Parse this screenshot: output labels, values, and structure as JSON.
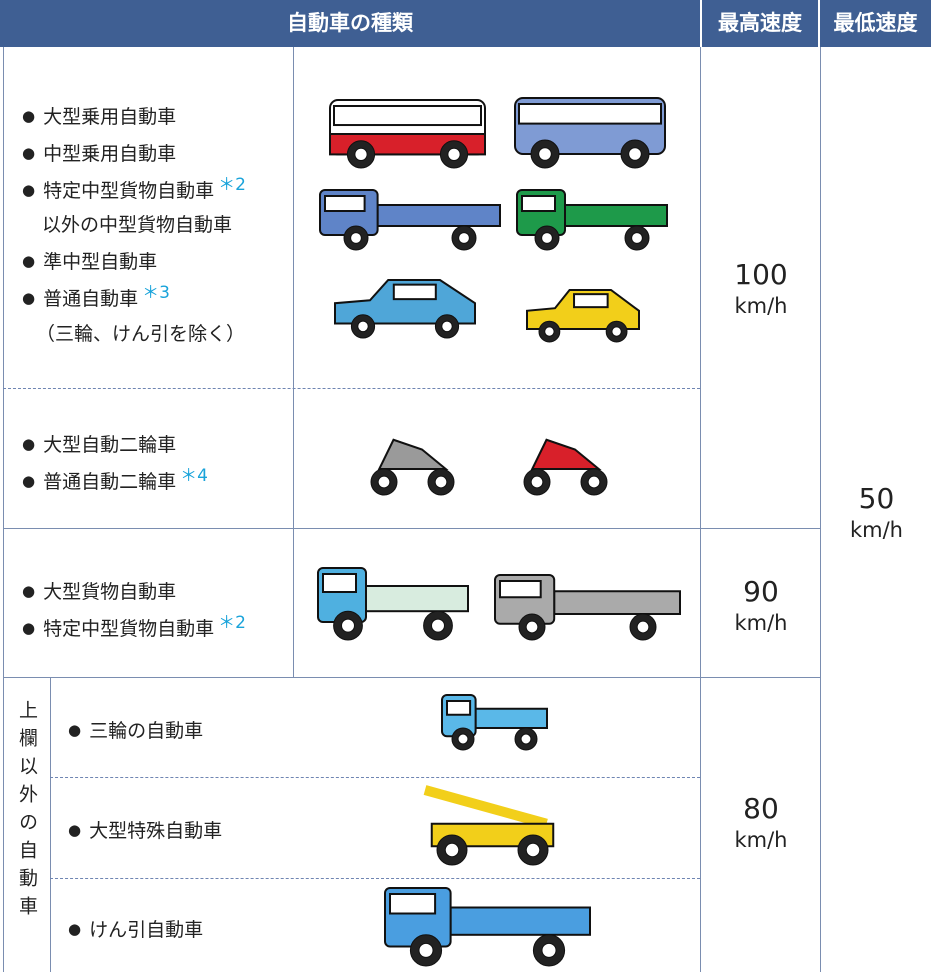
{
  "header": {
    "vehicle_type": "自動車の種類",
    "max_speed": "最高速度",
    "min_speed": "最低速度"
  },
  "rows": [
    {
      "sections": [
        {
          "items": [
            {
              "text": "大型乗用自動車"
            },
            {
              "text": "中型乗用自動車"
            },
            {
              "text": "特定中型貨物自動車",
              "note": "＊2",
              "continuation": "以外の中型貨物自動車"
            },
            {
              "text": "準中型自動車"
            },
            {
              "text": "普通自動車",
              "note": "＊3",
              "continuation": "（三輪、けん引を除く）"
            }
          ]
        },
        {
          "items": [
            {
              "text": "大型自動二輪車"
            },
            {
              "text": "普通自動二輪車",
              "note": "＊4"
            }
          ]
        }
      ],
      "max_speed": {
        "value": "100",
        "unit": "km/h"
      }
    },
    {
      "sections": [
        {
          "items": [
            {
              "text": "大型貨物自動車"
            },
            {
              "text": "特定中型貨物自動車",
              "note": "＊2"
            }
          ]
        }
      ],
      "max_speed": {
        "value": "90",
        "unit": "km/h"
      }
    },
    {
      "label": "上欄以外の自動車",
      "sections": [
        {
          "items": [
            {
              "text": "三輪の自動車"
            }
          ]
        },
        {
          "items": [
            {
              "text": "大型特殊自動車"
            }
          ]
        },
        {
          "items": [
            {
              "text": "けん引自動車"
            }
          ]
        }
      ],
      "max_speed": {
        "value": "80",
        "unit": "km/h"
      }
    }
  ],
  "min_speed": {
    "value": "50",
    "unit": "km/h"
  }
}
